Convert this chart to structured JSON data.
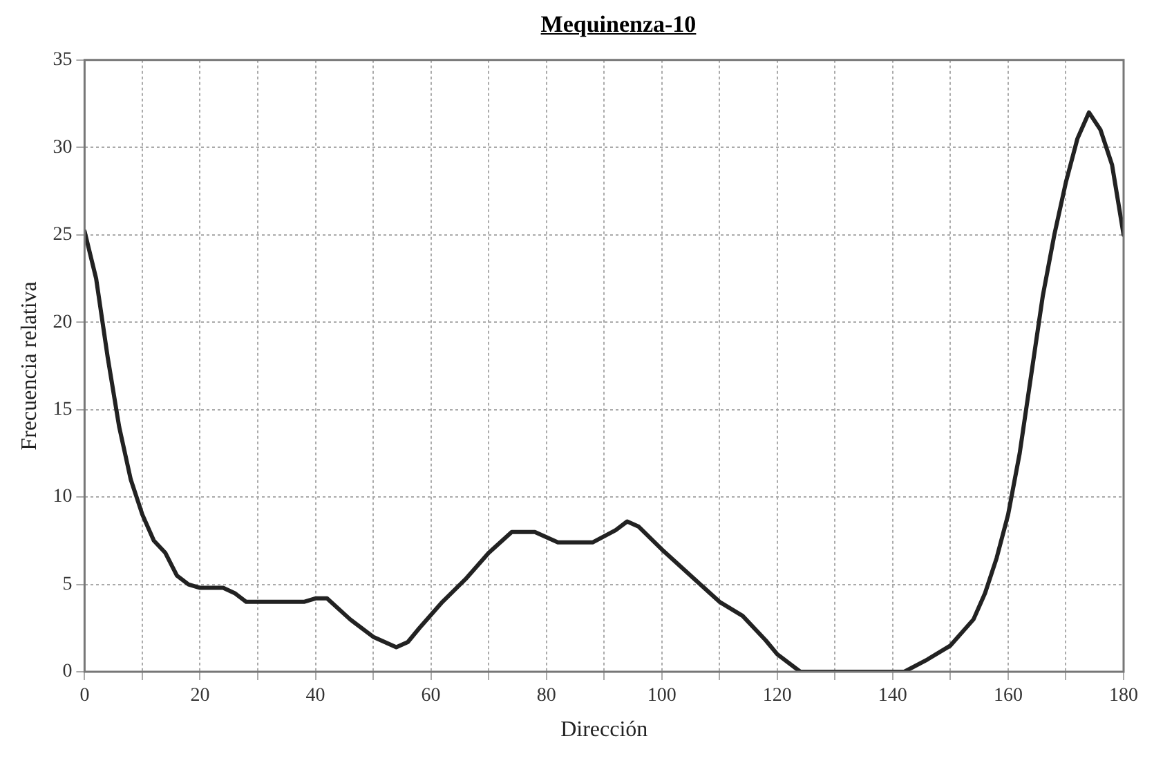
{
  "chart_data": {
    "type": "line",
    "title": "Mequinenza-10",
    "xlabel": "Dirección",
    "ylabel": "Frecuencia relativa",
    "x": [
      0,
      2,
      4,
      6,
      8,
      10,
      12,
      14,
      16,
      18,
      20,
      24,
      26,
      28,
      38,
      40,
      42,
      46,
      50,
      54,
      56,
      58,
      62,
      66,
      70,
      74,
      78,
      82,
      88,
      92,
      94,
      96,
      100,
      106,
      110,
      114,
      118,
      120,
      124,
      142,
      146,
      150,
      154,
      156,
      158,
      160,
      162,
      164,
      166,
      168,
      170,
      172,
      174,
      176,
      178,
      180
    ],
    "series": [
      {
        "color": "#222222",
        "values": [
          25.2,
          22.5,
          18,
          14,
          11,
          9,
          7.5,
          6.8,
          5.5,
          5,
          4.8,
          4.8,
          4.5,
          4,
          4,
          4.2,
          4.2,
          3,
          2,
          1.4,
          1.7,
          2.5,
          4,
          5.3,
          6.8,
          8,
          8,
          7.4,
          7.4,
          8.1,
          8.6,
          8.3,
          7,
          5.2,
          4,
          3.2,
          1.8,
          1,
          0,
          0,
          0.7,
          1.5,
          3,
          4.5,
          6.5,
          9,
          12.5,
          17,
          21.5,
          25,
          28,
          30.5,
          32,
          31,
          29,
          25
        ]
      }
    ],
    "xlim": [
      0,
      180
    ],
    "xticks": [
      0,
      {
        "value": 10,
        "label": null
      },
      20,
      {
        "value": 30,
        "label": null
      },
      40,
      {
        "value": 50,
        "label": null
      },
      60,
      {
        "value": 70,
        "label": null
      },
      80,
      {
        "value": 90,
        "label": null
      },
      100,
      {
        "value": 110,
        "label": null
      },
      120,
      {
        "value": 130,
        "label": null
      },
      140,
      {
        "value": 150,
        "label": null
      },
      160,
      {
        "value": 170,
        "label": null
      },
      180
    ],
    "ylim": [
      0,
      35
    ],
    "yticks": [
      0,
      5,
      10,
      15,
      20,
      25,
      30,
      35
    ],
    "grid": true,
    "legend": false,
    "marker": "none",
    "line_style": "solid"
  }
}
